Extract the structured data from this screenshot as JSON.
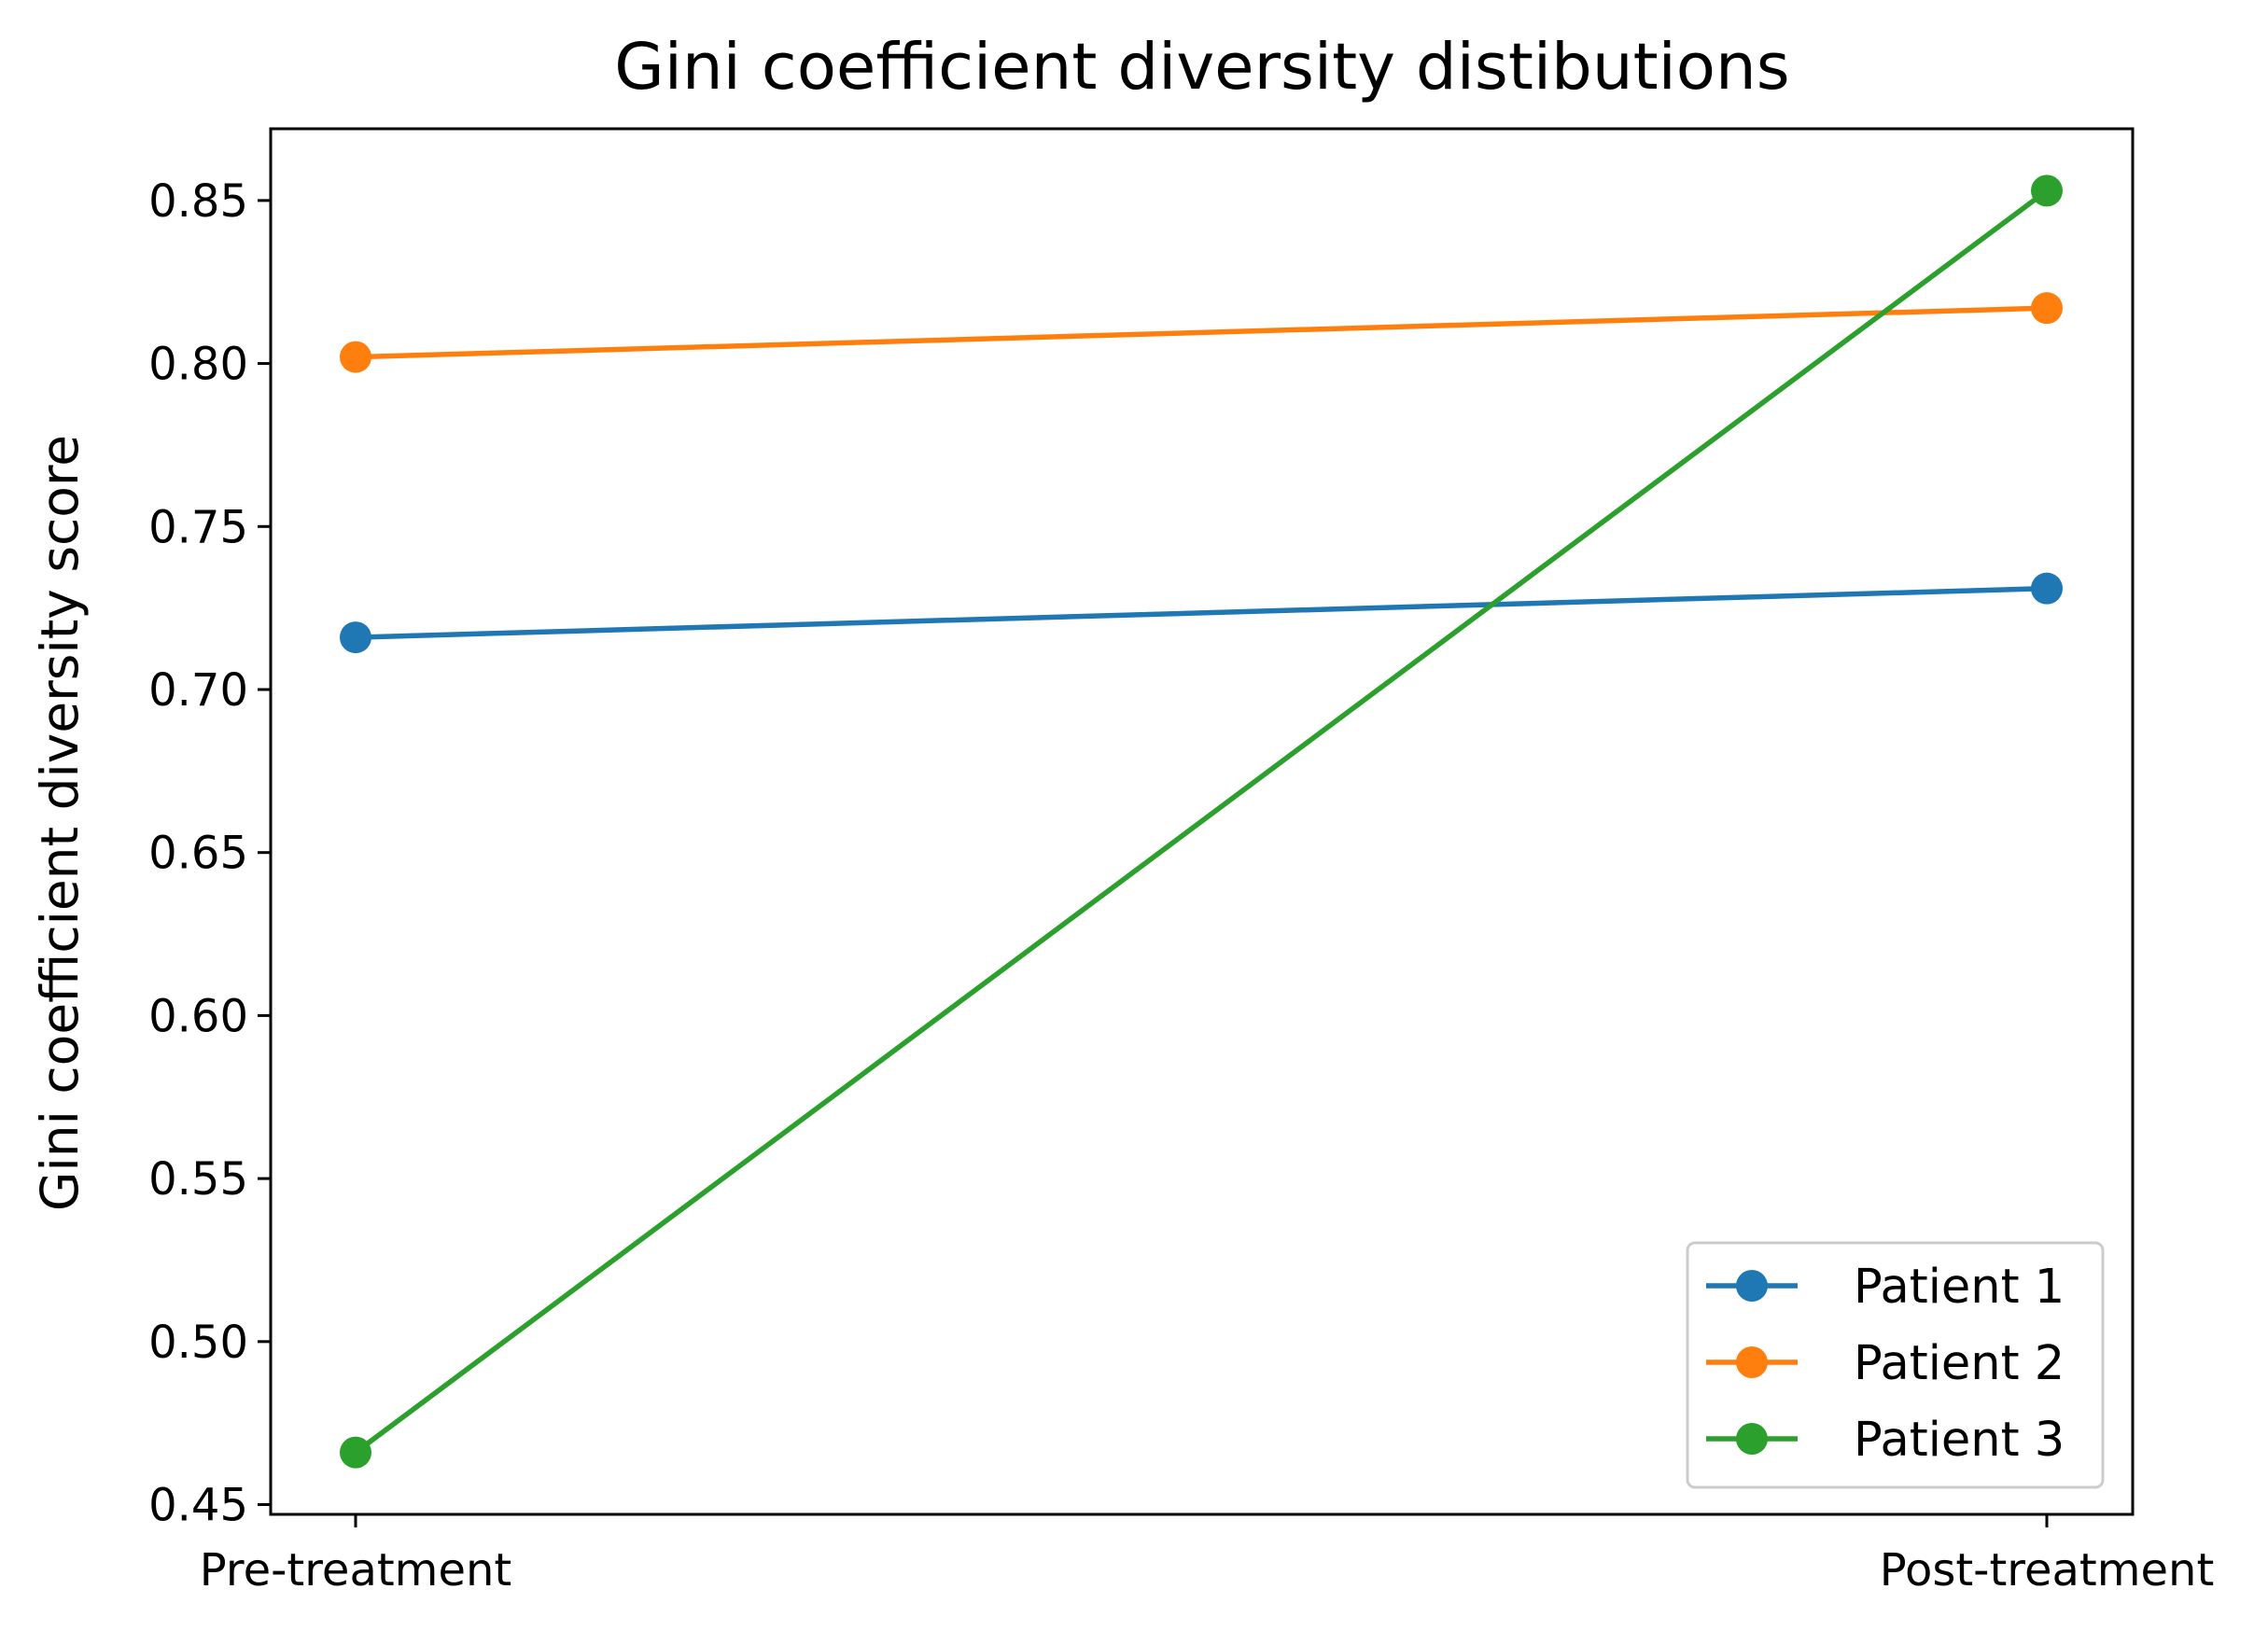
{
  "chart_data": {
    "type": "line",
    "title": "Gini coefficient diversity distibutions",
    "xlabel": "",
    "ylabel": "Gini coefficient diversity score",
    "categories": [
      "Pre-treatment",
      "Post-treatment"
    ],
    "ylim": [
      0.447,
      0.872
    ],
    "yticks": [
      0.45,
      0.5,
      0.55,
      0.6,
      0.65,
      0.7,
      0.75,
      0.8,
      0.85
    ],
    "ytick_labels": [
      "0.45",
      "0.50",
      "0.55",
      "0.60",
      "0.65",
      "0.70",
      "0.75",
      "0.80",
      "0.85"
    ],
    "series": [
      {
        "name": "Patient 1",
        "values": [
          0.716,
          0.731
        ],
        "color": "#1f77b4"
      },
      {
        "name": "Patient 2",
        "values": [
          0.802,
          0.817
        ],
        "color": "#ff7f0e"
      },
      {
        "name": "Patient 3",
        "values": [
          0.466,
          0.853
        ],
        "color": "#2ca02c"
      }
    ],
    "grid": false,
    "legend_position": "lower-right",
    "marker": "circle"
  }
}
